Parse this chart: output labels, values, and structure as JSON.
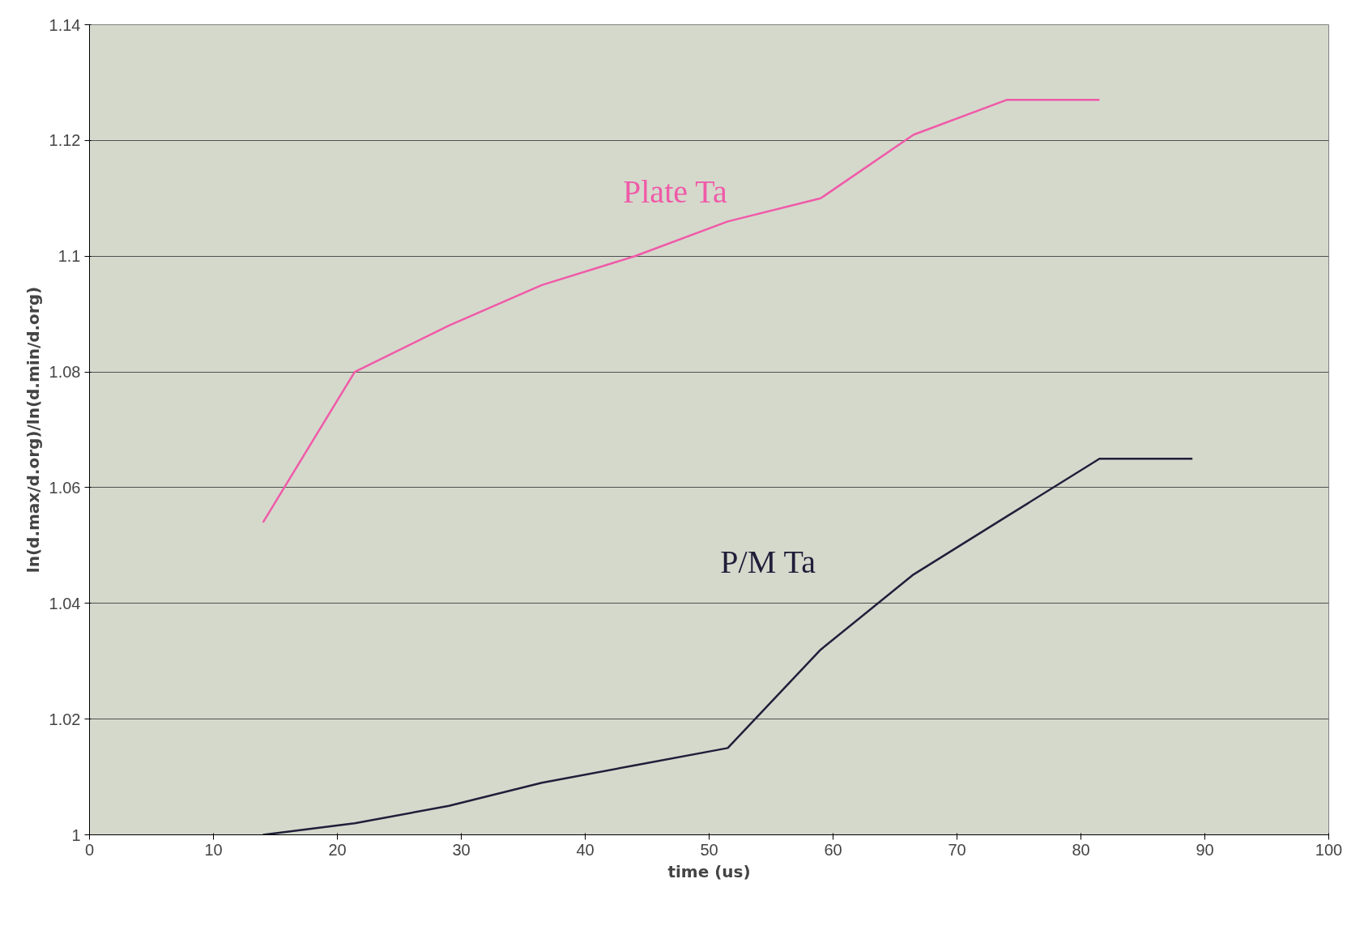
{
  "chart_data": {
    "type": "line",
    "xlabel": "time (us)",
    "ylabel": "ln(d.max/d.org)/ln(d.min/d.org)",
    "xlim": [
      0,
      100
    ],
    "xticks": [
      0,
      10,
      20,
      30,
      40,
      50,
      60,
      70,
      80,
      90,
      100
    ],
    "ylim": [
      1,
      1.14
    ],
    "yticks": [
      1,
      1.02,
      1.04,
      1.06,
      1.08,
      1.1,
      1.12,
      1.14
    ],
    "grid": "y",
    "marker": "none",
    "line_style": "solid",
    "series": [
      {
        "name": "Plate Ta",
        "color": "#f05aa8",
        "x": [
          14,
          21.4,
          29,
          36.5,
          44,
          51.5,
          59,
          66.5,
          74,
          81.5
        ],
        "values": [
          1.054,
          1.08,
          1.088,
          1.095,
          1.1,
          1.106,
          1.11,
          1.121,
          1.127,
          1.127
        ]
      },
      {
        "name": "P/M Ta",
        "color": "#1f1f3a",
        "x": [
          14,
          21.4,
          29,
          36.5,
          44,
          51.5,
          59,
          66.5,
          74,
          81.5,
          89
        ],
        "values": [
          1.0,
          1.002,
          1.005,
          1.009,
          1.012,
          1.015,
          1.032,
          1.045,
          1.055,
          1.065,
          1.065
        ]
      }
    ]
  }
}
